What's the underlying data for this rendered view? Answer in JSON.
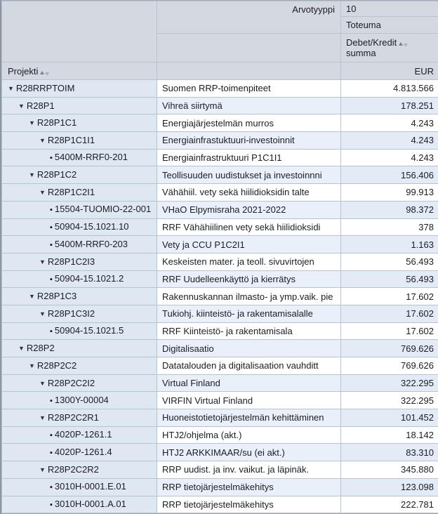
{
  "header": {
    "row_dim_label": "Projekti",
    "col_dim_label": "Arvotyyppi",
    "col_member_key": "10",
    "col_member_text": "Toteuma",
    "measure_line1": "Debet/Kredit",
    "measure_line2": "summa",
    "unit": "EUR"
  },
  "icons": {
    "expanded_node": "collapse-triangle-icon",
    "leaf_node": "leaf-bullet-icon",
    "sort": "sort-ascending-descending-icons"
  },
  "colors": {
    "header_bg": "#d4d9e1",
    "member_bg": "#dfe7f2",
    "stripe_mid": "#eaf0f9",
    "stripe_val": "#e3ebf6",
    "grid": "#b9c3d0",
    "text": "#1a1d22"
  },
  "table": {
    "rows": [
      {
        "code": "R28RRPTOIM",
        "name": "Suomen RRP-toimenpiteet",
        "value": "4.813.566",
        "level": 0,
        "node": "expanded"
      },
      {
        "code": "R28P1",
        "name": "Vihreä siirtymä",
        "value": "178.251",
        "level": 1,
        "node": "expanded"
      },
      {
        "code": "R28P1C1",
        "name": "Energiajärjestelmän murros",
        "value": "4.243",
        "level": 2,
        "node": "expanded"
      },
      {
        "code": "R28P1C1I1",
        "name": "Energiainfrastuktuuri-investoinnit",
        "value": "4.243",
        "level": 3,
        "node": "expanded"
      },
      {
        "code": "5400M-RRF0-201",
        "name": "Energiainfrastruktuuri P1C1I1",
        "value": "4.243",
        "level": 4,
        "node": "leaf"
      },
      {
        "code": "R28P1C2",
        "name": "Teollisuuden uudistukset ja investoinnni",
        "value": "156.406",
        "level": 2,
        "node": "expanded"
      },
      {
        "code": "R28P1C2I1",
        "name": "Vähähiil. vety sekä hiilidioksidin talte",
        "value": "99.913",
        "level": 3,
        "node": "expanded"
      },
      {
        "code": "15504-TUOMIO-22-001",
        "name": "VHaO Elpymisraha 2021-2022",
        "value": "98.372",
        "level": 4,
        "node": "leaf"
      },
      {
        "code": "50904-15.1021.10",
        "name": "RRF Vähähiilinen vety sekä hiilidioksidi",
        "value": "378",
        "level": 4,
        "node": "leaf"
      },
      {
        "code": "5400M-RRF0-203",
        "name": "Vety ja CCU P1C2I1",
        "value": "1.163",
        "level": 4,
        "node": "leaf"
      },
      {
        "code": "R28P1C2I3",
        "name": "Keskeisten mater. ja teoll. sivuvirtojen",
        "value": "56.493",
        "level": 3,
        "node": "expanded"
      },
      {
        "code": "50904-15.1021.2",
        "name": "RRF Uudelleenkäyttö ja kierrätys",
        "value": "56.493",
        "level": 4,
        "node": "leaf"
      },
      {
        "code": "R28P1C3",
        "name": "Rakennuskannan ilmasto- ja ymp.vaik. pie",
        "value": "17.602",
        "level": 2,
        "node": "expanded"
      },
      {
        "code": "R28P1C3I2",
        "name": "Tukiohj. kiinteistö- ja rakentamisalalle",
        "value": "17.602",
        "level": 3,
        "node": "expanded"
      },
      {
        "code": "50904-15.1021.5",
        "name": "RRF Kiinteistö- ja rakentamisala",
        "value": "17.602",
        "level": 4,
        "node": "leaf"
      },
      {
        "code": "R28P2",
        "name": "Digitalisaatio",
        "value": "769.626",
        "level": 1,
        "node": "expanded"
      },
      {
        "code": "R28P2C2",
        "name": "Datatalouden ja digitalisaation vauhditt",
        "value": "769.626",
        "level": 2,
        "node": "expanded"
      },
      {
        "code": "R28P2C2I2",
        "name": "Virtual Finland",
        "value": "322.295",
        "level": 3,
        "node": "expanded"
      },
      {
        "code": "1300Y-00004",
        "name": "VIRFIN Virtual Finland",
        "value": "322.295",
        "level": 4,
        "node": "leaf"
      },
      {
        "code": "R28P2C2R1",
        "name": "Huoneistotietojärjestelmän kehittäminen",
        "value": "101.452",
        "level": 3,
        "node": "expanded"
      },
      {
        "code": "4020P-1261.1",
        "name": "HTJ2/ohjelma (akt.)",
        "value": "18.142",
        "level": 4,
        "node": "leaf"
      },
      {
        "code": "4020P-1261.4",
        "name": "HTJ2 ARKKIMAAR/su (ei akt.)",
        "value": "83.310",
        "level": 4,
        "node": "leaf"
      },
      {
        "code": "R28P2C2R2",
        "name": "RRP uudist. ja inv. vaikut. ja läpinäk.",
        "value": "345.880",
        "level": 3,
        "node": "expanded"
      },
      {
        "code": "3010H-0001.E.01",
        "name": "RRP tietojärjestelmäkehitys",
        "value": "123.098",
        "level": 4,
        "node": "leaf"
      },
      {
        "code": "3010H-0001.A.01",
        "name": "RRP tietojärjestelmäkehitys",
        "value": "222.781",
        "level": 4,
        "node": "leaf"
      }
    ]
  }
}
